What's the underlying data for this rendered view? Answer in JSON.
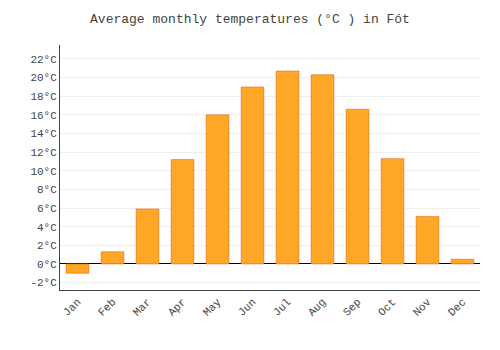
{
  "chart_data": {
    "type": "bar",
    "title": "Average monthly temperatures (°C ) in Fót",
    "categories": [
      "Jan",
      "Feb",
      "Mar",
      "Apr",
      "May",
      "Jun",
      "Jul",
      "Aug",
      "Sep",
      "Oct",
      "Nov",
      "Dec"
    ],
    "values": [
      -1.0,
      1.3,
      5.9,
      11.2,
      16.0,
      19.0,
      20.7,
      20.3,
      16.6,
      11.3,
      5.1,
      0.5
    ],
    "color": "#FFA726",
    "ylim": [
      -2.8,
      23.5
    ],
    "yticks": [
      {
        "value": -2,
        "label": "-2°C"
      },
      {
        "value": 0,
        "label": "0°C"
      },
      {
        "value": 2,
        "label": "2°C"
      },
      {
        "value": 4,
        "label": "4°C"
      },
      {
        "value": 6,
        "label": "6°C"
      },
      {
        "value": 8,
        "label": "8°C"
      },
      {
        "value": 10,
        "label": "10°C"
      },
      {
        "value": 12,
        "label": "12°C"
      },
      {
        "value": 14,
        "label": "14°C"
      },
      {
        "value": 16,
        "label": "16°C"
      },
      {
        "value": 18,
        "label": "18°C"
      },
      {
        "value": 20,
        "label": "20°C"
      },
      {
        "value": 22,
        "label": "22°C"
      }
    ],
    "grid": true
  }
}
